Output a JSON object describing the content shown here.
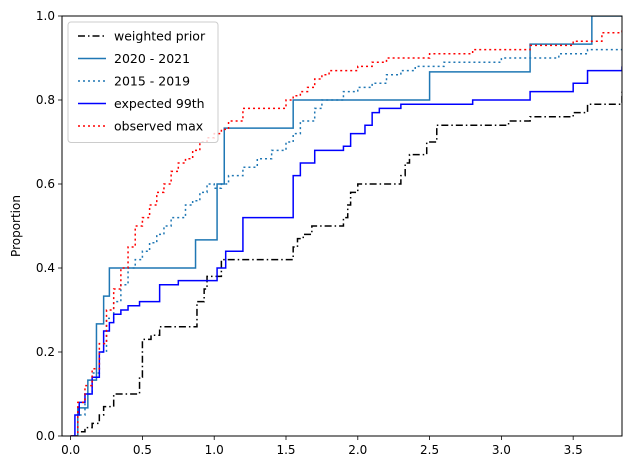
{
  "chart_data": {
    "type": "line",
    "step": true,
    "title": "",
    "xlabel": "",
    "ylabel": "Proportion",
    "xlim": [
      -0.06,
      3.84
    ],
    "ylim": [
      0,
      1
    ],
    "xticks": [
      "0.0",
      "0.5",
      "1.0",
      "1.5",
      "2.0",
      "2.5",
      "3.0",
      "3.5"
    ],
    "xtick_values": [
      0,
      0.5,
      1.0,
      1.5,
      2.0,
      2.5,
      3.0,
      3.5
    ],
    "yticks": [
      "0.0",
      "0.2",
      "0.4",
      "0.6",
      "0.8",
      "1.0"
    ],
    "ytick_values": [
      0,
      0.2,
      0.4,
      0.6,
      0.8,
      1.0
    ],
    "grid": false,
    "legend_position": "upper-left",
    "series": [
      {
        "name": "weighted prior",
        "color": "#000000",
        "dash": "dashdot",
        "x": [
          0,
          0.05,
          0.1,
          0.15,
          0.2,
          0.23,
          0.3,
          0.48,
          0.5,
          0.56,
          0.62,
          0.86,
          0.88,
          0.93,
          0.95,
          1.05,
          1.22,
          1.55,
          1.58,
          1.62,
          1.68,
          1.75,
          1.9,
          1.93,
          1.95,
          2.0,
          2.1,
          2.3,
          2.33,
          2.36,
          2.42,
          2.48,
          2.55,
          2.75,
          2.9,
          3.0,
          3.05,
          3.1,
          3.2,
          3.25,
          3.5,
          3.6,
          3.8,
          3.84
        ],
        "y": [
          0,
          0.01,
          0.02,
          0.03,
          0.05,
          0.07,
          0.1,
          0.14,
          0.23,
          0.24,
          0.26,
          0.26,
          0.32,
          0.35,
          0.38,
          0.42,
          0.42,
          0.45,
          0.47,
          0.48,
          0.5,
          0.5,
          0.52,
          0.55,
          0.58,
          0.6,
          0.6,
          0.62,
          0.65,
          0.67,
          0.67,
          0.7,
          0.74,
          0.74,
          0.74,
          0.74,
          0.75,
          0.75,
          0.76,
          0.76,
          0.77,
          0.79,
          0.79,
          0.82
        ]
      },
      {
        "name": "2020 - 2021",
        "color": "#1f77b4",
        "dash": "solid",
        "x": [
          0,
          0.05,
          0.12,
          0.18,
          0.23,
          0.27,
          0.87,
          1.02,
          1.07,
          1.55,
          1.65,
          2.5,
          3.2,
          3.63,
          3.84
        ],
        "y": [
          0,
          0.067,
          0.133,
          0.267,
          0.333,
          0.4,
          0.467,
          0.6,
          0.733,
          0.8,
          0.8,
          0.867,
          0.933,
          1.0,
          1.0
        ]
      },
      {
        "name": "2015 - 2019",
        "color": "#1f77b4",
        "dash": "dotted",
        "x": [
          0,
          0.05,
          0.1,
          0.15,
          0.2,
          0.25,
          0.3,
          0.35,
          0.4,
          0.45,
          0.5,
          0.55,
          0.6,
          0.65,
          0.7,
          0.8,
          0.85,
          0.9,
          0.95,
          1.0,
          1.05,
          1.1,
          1.2,
          1.3,
          1.4,
          1.5,
          1.55,
          1.6,
          1.7,
          1.75,
          1.8,
          1.9,
          2.0,
          2.1,
          2.2,
          2.3,
          2.4,
          2.6,
          2.8,
          3.0,
          3.2,
          3.4,
          3.6,
          3.84
        ],
        "y": [
          0,
          0.05,
          0.1,
          0.15,
          0.2,
          0.28,
          0.32,
          0.36,
          0.4,
          0.42,
          0.44,
          0.46,
          0.48,
          0.5,
          0.52,
          0.55,
          0.56,
          0.58,
          0.6,
          0.59,
          0.6,
          0.62,
          0.64,
          0.66,
          0.68,
          0.7,
          0.72,
          0.75,
          0.78,
          0.8,
          0.8,
          0.82,
          0.83,
          0.84,
          0.86,
          0.87,
          0.88,
          0.89,
          0.89,
          0.9,
          0.9,
          0.91,
          0.92,
          0.92
        ]
      },
      {
        "name": "expected 99th",
        "color": "#0000ff",
        "dash": "solid",
        "x": [
          0,
          0.03,
          0.06,
          0.1,
          0.15,
          0.2,
          0.23,
          0.27,
          0.3,
          0.35,
          0.4,
          0.48,
          0.62,
          0.75,
          0.87,
          1.02,
          1.08,
          1.2,
          1.55,
          1.6,
          1.7,
          1.9,
          1.95,
          2.05,
          2.1,
          2.15,
          2.2,
          2.3,
          2.5,
          2.8,
          3.2,
          3.5,
          3.6,
          3.8,
          3.84
        ],
        "y": [
          0,
          0.05,
          0.08,
          0.1,
          0.14,
          0.2,
          0.25,
          0.27,
          0.29,
          0.3,
          0.31,
          0.32,
          0.36,
          0.37,
          0.37,
          0.4,
          0.44,
          0.52,
          0.62,
          0.65,
          0.68,
          0.69,
          0.72,
          0.74,
          0.77,
          0.78,
          0.78,
          0.79,
          0.79,
          0.8,
          0.82,
          0.84,
          0.87,
          0.87,
          0.88
        ]
      },
      {
        "name": "observed max",
        "color": "#ff0000",
        "dash": "dotted",
        "x": [
          0,
          0.05,
          0.1,
          0.15,
          0.2,
          0.25,
          0.3,
          0.35,
          0.4,
          0.45,
          0.5,
          0.55,
          0.6,
          0.65,
          0.7,
          0.75,
          0.8,
          0.85,
          0.9,
          0.95,
          1.0,
          1.05,
          1.1,
          1.2,
          1.3,
          1.4,
          1.5,
          1.55,
          1.6,
          1.65,
          1.7,
          1.75,
          1.8,
          1.9,
          2.0,
          2.1,
          2.2,
          2.5,
          2.8,
          3.2,
          3.5,
          3.7,
          3.84
        ],
        "y": [
          0,
          0.08,
          0.12,
          0.16,
          0.22,
          0.3,
          0.35,
          0.4,
          0.45,
          0.5,
          0.52,
          0.55,
          0.58,
          0.6,
          0.63,
          0.65,
          0.66,
          0.68,
          0.7,
          0.71,
          0.72,
          0.73,
          0.75,
          0.78,
          0.78,
          0.78,
          0.8,
          0.81,
          0.82,
          0.83,
          0.85,
          0.86,
          0.87,
          0.87,
          0.88,
          0.89,
          0.9,
          0.91,
          0.92,
          0.93,
          0.94,
          0.96,
          0.97
        ]
      }
    ]
  }
}
